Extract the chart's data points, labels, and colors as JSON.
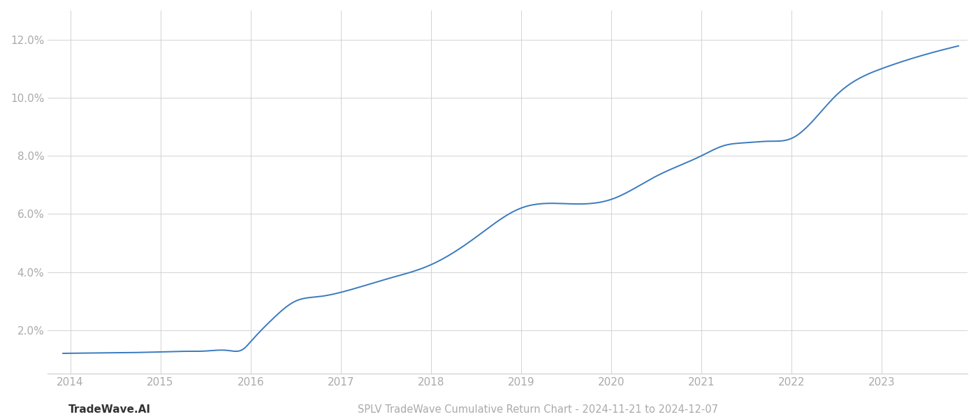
{
  "title": "SPLV TradeWave Cumulative Return Chart - 2024-11-21 to 2024-12-07",
  "watermark": "TradeWave.AI",
  "line_color": "#3a7abf",
  "line_width": 1.4,
  "background_color": "#ffffff",
  "grid_color": "#cccccc",
  "grid_linewidth": 0.6,
  "tick_label_color": "#aaaaaa",
  "title_color": "#aaaaaa",
  "watermark_color": "#333333",
  "x_years": [
    2014,
    2015,
    2016,
    2017,
    2018,
    2019,
    2020,
    2021,
    2022,
    2023
  ],
  "key_x": [
    2013.92,
    2014.5,
    2015.0,
    2015.25,
    2015.5,
    2015.75,
    2015.92,
    2016.0,
    2016.25,
    2016.5,
    2016.75,
    2017.0,
    2017.5,
    2018.0,
    2018.5,
    2019.0,
    2019.5,
    2020.0,
    2020.5,
    2021.0,
    2021.25,
    2021.5,
    2021.75,
    2022.0,
    2022.5,
    2023.0,
    2023.5,
    2023.85
  ],
  "key_y": [
    1.2,
    1.22,
    1.25,
    1.27,
    1.28,
    1.3,
    1.35,
    1.6,
    2.4,
    3.0,
    3.15,
    3.3,
    3.75,
    4.25,
    5.2,
    6.2,
    6.35,
    6.5,
    7.3,
    8.0,
    8.35,
    8.45,
    8.5,
    8.6,
    10.1,
    11.0,
    11.5,
    11.78
  ],
  "ylim": [
    0.5,
    13.0
  ],
  "yticks": [
    2.0,
    4.0,
    6.0,
    8.0,
    10.0,
    12.0
  ],
  "xlim": [
    2013.75,
    2023.95
  ],
  "title_fontsize": 10.5,
  "tick_fontsize": 11,
  "watermark_fontsize": 11
}
